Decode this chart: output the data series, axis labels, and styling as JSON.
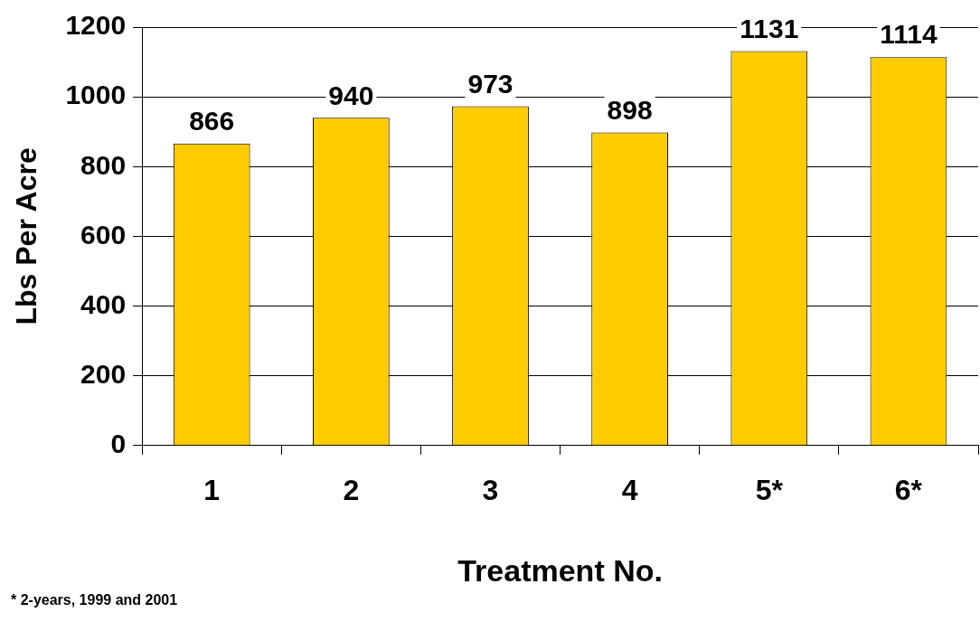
{
  "chart_data": {
    "type": "bar",
    "categories": [
      "1",
      "2",
      "3",
      "4",
      "5*",
      "6*"
    ],
    "values": [
      866,
      940,
      973,
      898,
      1131,
      1114
    ],
    "color": "#ffcc00",
    "data_labels": true,
    "xlabel": "Treatment No.",
    "ylabel": "Lbs Per Acre",
    "ylim": [
      0,
      1200
    ],
    "yticks": [
      0,
      200,
      400,
      600,
      800,
      1000,
      1200
    ],
    "grid": "y",
    "legend": false,
    "annotations": [
      "* 2-years, 1999 and 2001"
    ]
  }
}
